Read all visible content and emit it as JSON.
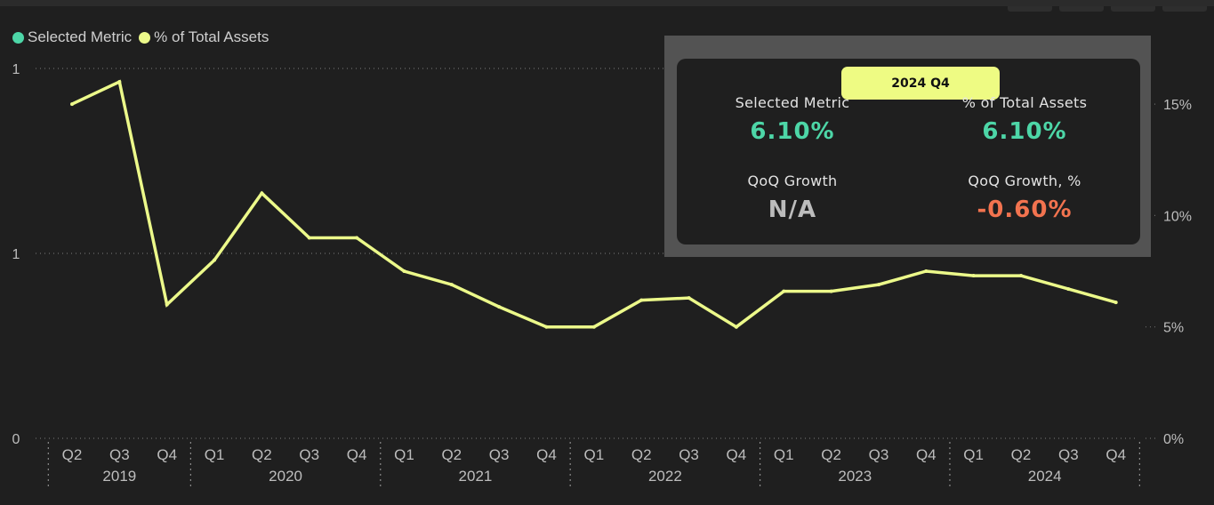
{
  "legend": {
    "items": [
      {
        "label": "Selected Metric",
        "color": "#4dd6a7"
      },
      {
        "label": "% of Total Assets",
        "color": "#ecf98a"
      }
    ]
  },
  "tooltip": {
    "period": "2024 Q4",
    "selected_metric_label": "Selected Metric",
    "selected_metric_value": "6.10%",
    "pct_total_label": "% of Total Assets",
    "pct_total_value": "6.10%",
    "qoq_label": "QoQ Growth",
    "qoq_value": "N/A",
    "qoq_pct_label": "QoQ Growth, %",
    "qoq_pct_value": "-0.60%",
    "colors": {
      "metric": "#4dd6a7",
      "na": "#bcbcbc",
      "negative": "#f2734f"
    }
  },
  "chart_data": {
    "type": "line",
    "quarters": [
      "Q2",
      "Q3",
      "Q4",
      "Q1",
      "Q2",
      "Q3",
      "Q4",
      "Q1",
      "Q2",
      "Q3",
      "Q4",
      "Q1",
      "Q2",
      "Q3",
      "Q4",
      "Q1",
      "Q2",
      "Q3",
      "Q4",
      "Q1",
      "Q2",
      "Q3",
      "Q4"
    ],
    "years": [
      {
        "label": "2019",
        "count": 3
      },
      {
        "label": "2020",
        "count": 4
      },
      {
        "label": "2021",
        "count": 4
      },
      {
        "label": "2022",
        "count": 4
      },
      {
        "label": "2023",
        "count": 4
      },
      {
        "label": "2024",
        "count": 4
      }
    ],
    "left_axis_ticks": [
      "1",
      "1",
      "0"
    ],
    "right_axis_ticks": [
      "15%",
      "10%",
      "5%",
      "0%"
    ],
    "right_ylim": [
      0,
      16.6
    ],
    "series": [
      {
        "name": "% of Total Assets",
        "color": "#ecf98a",
        "values": [
          15.0,
          16.0,
          6.0,
          8.0,
          11.0,
          9.0,
          9.0,
          7.5,
          6.9,
          5.9,
          5.0,
          5.0,
          6.2,
          6.3,
          5.0,
          6.6,
          6.6,
          6.9,
          7.5,
          7.3,
          7.3,
          6.7,
          6.1
        ]
      }
    ]
  }
}
